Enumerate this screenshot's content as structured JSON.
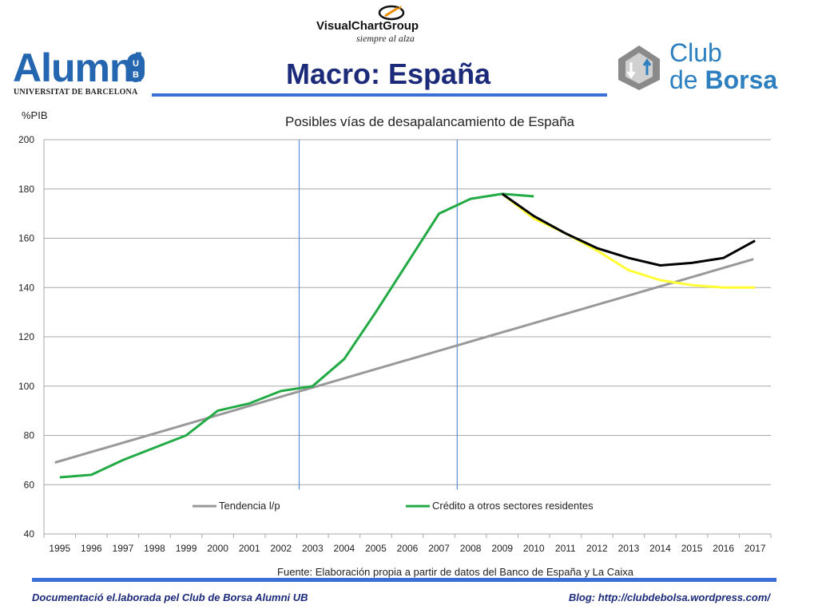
{
  "header": {
    "brand_top": "VisualChartGroup",
    "brand_tagline": "siempre al alza",
    "title": "Macro: España",
    "left_logo": "Alumni",
    "left_logo_sub": "UNIVERSITAT DE BARCELONA",
    "left_logo_badge": "UB",
    "right_logo_line1": "Club",
    "right_logo_line2a": "de",
    "right_logo_line2b": "Borsa"
  },
  "footer": {
    "left": "Documentació el.laborada pel Club de Borsa Alumni UB",
    "right": "Blog: http://clubdebolsa.wordpress.com/"
  },
  "colors": {
    "brand_blue": "#2566b0",
    "title_navy": "#1c2a7a",
    "rule_blue": "#3b6fd8",
    "club_blue": "#2d7fbf",
    "trend": "#999999",
    "credit": "#22aa44",
    "scenario_black": "#000000",
    "scenario_yellow": "#ffff33",
    "marker_line": "#5b8fd6"
  },
  "chart_data": {
    "type": "line",
    "title": "Posibles vías de desapalancamiento de España",
    "ylabel": "%PIB",
    "xlabel": "",
    "source_note": "Fuente: Elaboración propia a partir de datos del Banco de España y La Caixa",
    "categories": [
      "1995",
      "1996",
      "1997",
      "1998",
      "1999",
      "2000",
      "2001",
      "2002",
      "2003",
      "2004",
      "2005",
      "2006",
      "2007",
      "2008",
      "2009",
      "2010",
      "2011",
      "2012",
      "2013",
      "2014",
      "2015",
      "2016",
      "2017"
    ],
    "ylim": [
      40,
      200
    ],
    "yticks": [
      40,
      60,
      80,
      100,
      120,
      140,
      160,
      180,
      200
    ],
    "grid": true,
    "legend_position": "bottom-inside",
    "vertical_markers": [
      "2003",
      "2008"
    ],
    "series": [
      {
        "name": "Tendencia l/p",
        "color": "#999999",
        "in_legend": true,
        "x": [
          0,
          22
        ],
        "values": [
          69,
          151.5
        ]
      },
      {
        "name": "Crédito a otros sectores residentes",
        "color": "#22aa44",
        "in_legend": true,
        "x": [
          0,
          1,
          2,
          3,
          4,
          5,
          6,
          7,
          8,
          9,
          10,
          11,
          12,
          13,
          14,
          15
        ],
        "values": [
          63,
          64,
          70,
          75,
          80,
          90,
          93,
          98,
          100,
          111,
          130,
          150,
          170,
          176,
          178,
          177
        ]
      },
      {
        "color": "#000000",
        "in_legend": false,
        "x": [
          14,
          15,
          16,
          17,
          18,
          19,
          20,
          21,
          22
        ],
        "values": [
          178,
          169,
          162,
          156,
          152,
          149,
          150,
          152,
          159
        ]
      },
      {
        "color": "#ffff33",
        "in_legend": false,
        "x": [
          14,
          15,
          16,
          17,
          18,
          19,
          20,
          21,
          22
        ],
        "values": [
          178,
          168,
          162,
          155,
          147,
          143,
          141,
          140,
          140
        ]
      }
    ]
  }
}
